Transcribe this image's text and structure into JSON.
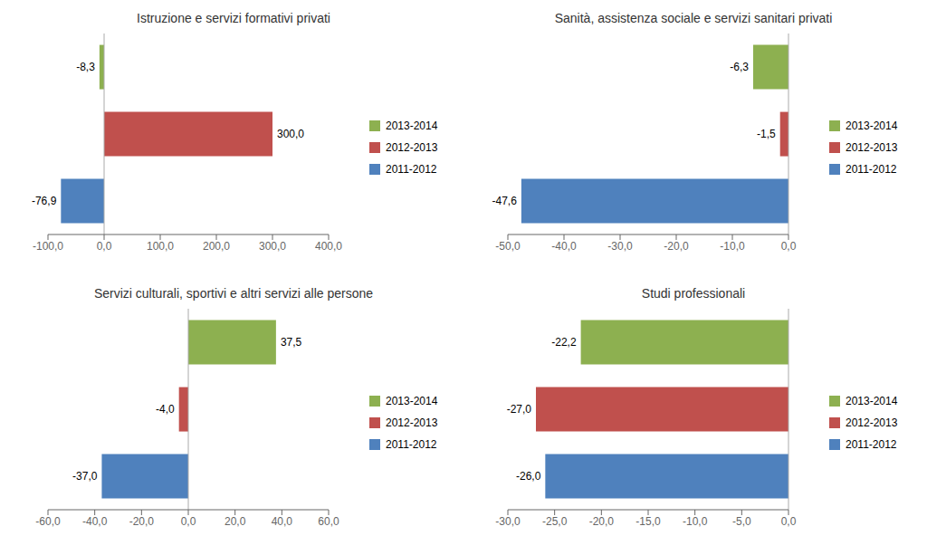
{
  "chart_data": [
    {
      "type": "bar",
      "orientation": "horizontal",
      "title": "Istruzione e servizi formativi privati",
      "categories": [
        "2013-2014",
        "2012-2013",
        "2011-2012"
      ],
      "values": [
        -8.3,
        300.0,
        -76.9
      ],
      "value_labels": [
        "-8,3",
        "300,0",
        "-76,9"
      ],
      "colors": [
        "#8db050",
        "#c0504d",
        "#4f81bd"
      ],
      "xlim": [
        -100,
        400
      ],
      "xticks": [
        {
          "value": -100,
          "label": "-100,0"
        },
        {
          "value": 0,
          "label": "0,0"
        },
        {
          "value": 100,
          "label": "100,0"
        },
        {
          "value": 200,
          "label": "200,0"
        },
        {
          "value": 300,
          "label": "300,0"
        },
        {
          "value": 400,
          "label": "400,0"
        }
      ],
      "data_labels": true,
      "tick_labels": "x",
      "grid": false,
      "legend": "right"
    },
    {
      "type": "bar",
      "orientation": "horizontal",
      "title": "Sanità, assistenza sociale e servizi sanitari privati",
      "categories": [
        "2013-2014",
        "2012-2013",
        "2011-2012"
      ],
      "values": [
        -6.3,
        -1.5,
        -47.6
      ],
      "value_labels": [
        "-6,3",
        "-1,5",
        "-47,6"
      ],
      "colors": [
        "#8db050",
        "#c0504d",
        "#4f81bd"
      ],
      "xlim": [
        -50,
        0
      ],
      "xticks": [
        {
          "value": -50,
          "label": "-50,0"
        },
        {
          "value": -40,
          "label": "-40,0"
        },
        {
          "value": -30,
          "label": "-30,0"
        },
        {
          "value": -20,
          "label": "-20,0"
        },
        {
          "value": -10,
          "label": "-10,0"
        },
        {
          "value": 0,
          "label": "0,0"
        }
      ],
      "data_labels": true,
      "tick_labels": "x",
      "grid": false,
      "legend": "right"
    },
    {
      "type": "bar",
      "orientation": "horizontal",
      "title": "Servizi culturali, sportivi e altri servizi alle persone",
      "categories": [
        "2013-2014",
        "2012-2013",
        "2011-2012"
      ],
      "values": [
        37.5,
        -4.0,
        -37.0
      ],
      "value_labels": [
        "37,5",
        "-4,0",
        "-37,0"
      ],
      "colors": [
        "#8db050",
        "#c0504d",
        "#4f81bd"
      ],
      "xlim": [
        -60,
        60
      ],
      "xticks": [
        {
          "value": -60,
          "label": "-60,0"
        },
        {
          "value": -40,
          "label": "-40,0"
        },
        {
          "value": -20,
          "label": "-20,0"
        },
        {
          "value": 0,
          "label": "0,0"
        },
        {
          "value": 20,
          "label": "20,0"
        },
        {
          "value": 40,
          "label": "40,0"
        },
        {
          "value": 60,
          "label": "60,0"
        }
      ],
      "data_labels": true,
      "tick_labels": "x",
      "grid": false,
      "legend": "right"
    },
    {
      "type": "bar",
      "orientation": "horizontal",
      "title": "Studi professionali",
      "categories": [
        "2013-2014",
        "2012-2013",
        "2011-2012"
      ],
      "values": [
        -22.2,
        -27.0,
        -26.0
      ],
      "value_labels": [
        "-22,2",
        "-27,0",
        "-26,0"
      ],
      "colors": [
        "#8db050",
        "#c0504d",
        "#4f81bd"
      ],
      "xlim": [
        -30,
        0
      ],
      "xticks": [
        {
          "value": -30,
          "label": "-30,0"
        },
        {
          "value": -25,
          "label": "-25,0"
        },
        {
          "value": -20,
          "label": "-20,0"
        },
        {
          "value": -15,
          "label": "-15,0"
        },
        {
          "value": -10,
          "label": "-10,0"
        },
        {
          "value": -5,
          "label": "-5,0"
        },
        {
          "value": 0,
          "label": "0,0"
        }
      ],
      "data_labels": true,
      "tick_labels": "x",
      "grid": false,
      "legend": "right"
    }
  ]
}
